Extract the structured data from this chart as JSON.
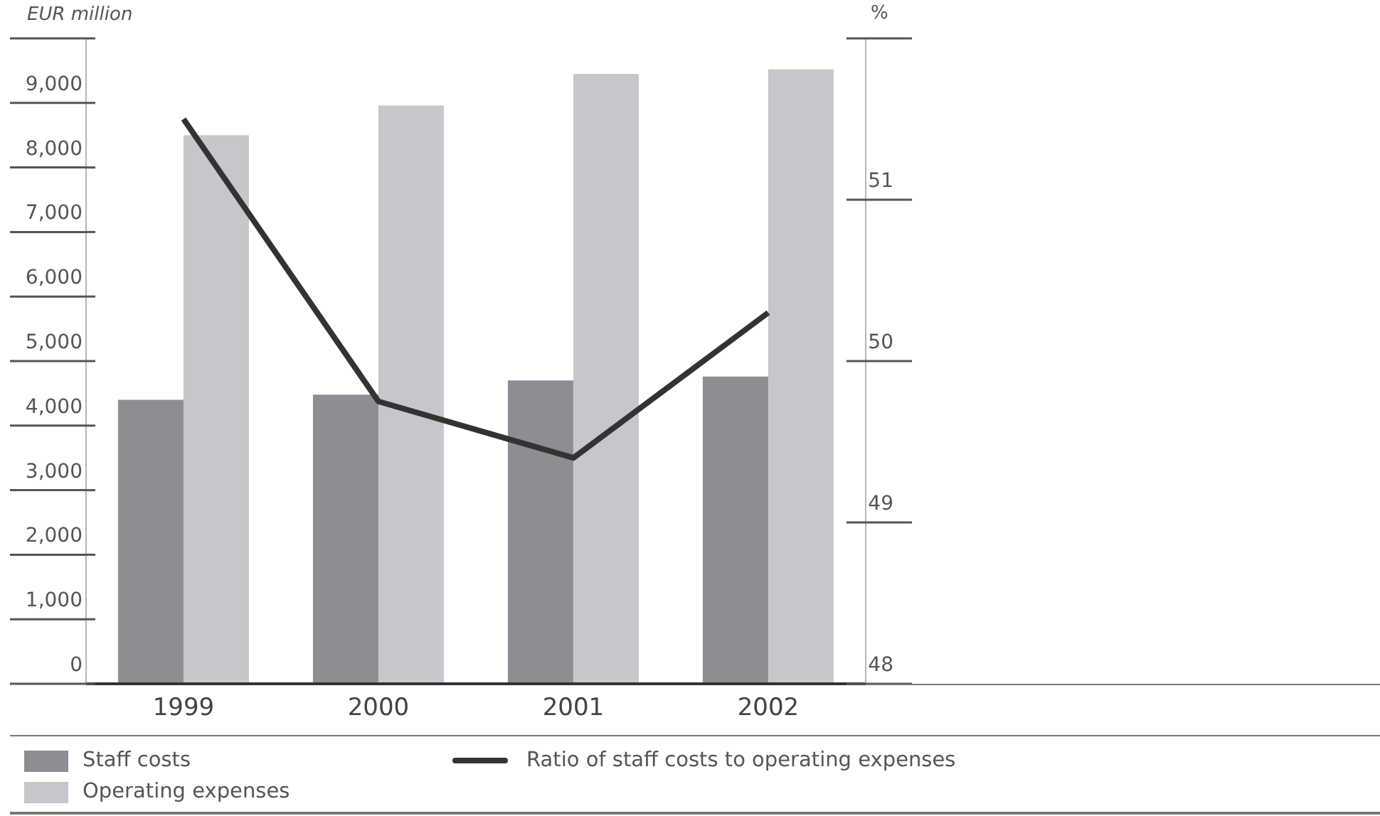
{
  "chart_data": {
    "type": "bar",
    "ylabel": "EUR million",
    "y2label": "%",
    "categories": [
      "1999",
      "2000",
      "2001",
      "2002"
    ],
    "series": [
      {
        "name": "Staff costs",
        "color": "#8c8e93",
        "values": [
          4400,
          4480,
          4700,
          4760
        ]
      },
      {
        "name": "Operating expenses",
        "color": "#c6c7cc",
        "values": [
          8500,
          8960,
          9450,
          9520
        ]
      },
      {
        "name": "Ratio of staff costs to operating expenses",
        "type": "line",
        "axis": "y2",
        "color": "#333333",
        "values": [
          51.5,
          49.75,
          49.4,
          50.3
        ]
      }
    ],
    "ylim": [
      0,
      10000
    ],
    "yticks": [
      0,
      {
        "value": 1000,
        "label": "1,000"
      },
      {
        "value": 2000,
        "label": "2,000"
      },
      {
        "value": 3000,
        "label": "3,000"
      },
      {
        "value": 4000,
        "label": "4,000"
      },
      {
        "value": 5000,
        "label": "5,000"
      },
      {
        "value": 6000,
        "label": "6,000"
      },
      {
        "value": 7000,
        "label": "7,000"
      },
      {
        "value": 8000,
        "label": "8,000"
      },
      {
        "value": 9000,
        "label": "9,000"
      },
      {
        "value": 10000,
        "label": null
      }
    ],
    "y2lim": [
      48,
      52
    ],
    "y2ticks": [
      48,
      49,
      50,
      51,
      {
        "value": 52,
        "label": null
      }
    ],
    "legend": "bottom",
    "marker": "none",
    "line_style": "solid"
  }
}
